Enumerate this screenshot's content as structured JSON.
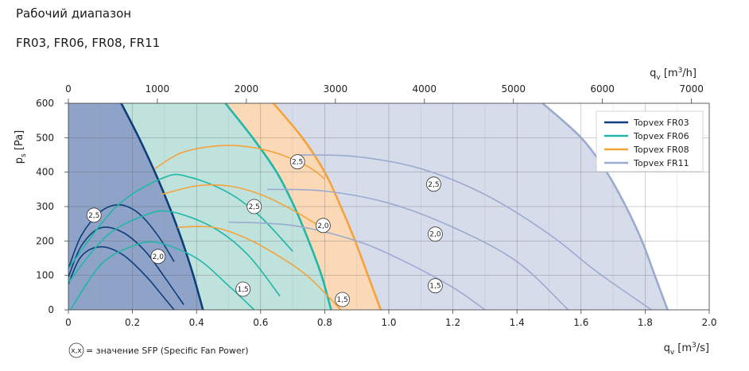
{
  "header": {
    "title": "Рабочий диапазон",
    "subtitle": "FR03, FR06, FR08, FR11"
  },
  "chart_data": {
    "type": "line",
    "ylabel_main": "p",
    "ylabel_sub": "s",
    "ylabel_unit": " [Pa]",
    "xlabel_main": "q",
    "xlabel_sub": "v",
    "xlabel_unit_pre": " [m",
    "xlabel_unit_sup": "3",
    "xlabel_unit_post": "/s]",
    "x2label_main": "q",
    "x2label_sub": "v",
    "x2label_unit_pre": " [m",
    "x2label_unit_sup": "3",
    "x2label_unit_post": "/h]",
    "xlim": [
      0,
      2.0
    ],
    "ylim": [
      0,
      600
    ],
    "x2lim": [
      0,
      7200
    ],
    "x_ticks": [
      0,
      0.2,
      0.4,
      0.6,
      0.8,
      1.0,
      1.2,
      1.4,
      1.6,
      1.8,
      2.0
    ],
    "x_tick_labels": [
      "0",
      "0.2",
      "0.4",
      "0.6",
      "0.8",
      "1.0",
      "1.2",
      "1.4",
      "1.6",
      "1.8",
      "2.0"
    ],
    "y_ticks": [
      0,
      100,
      200,
      300,
      400,
      500,
      600
    ],
    "y_tick_labels": [
      "0",
      "100",
      "200",
      "300",
      "400",
      "500",
      "600"
    ],
    "x2_ticks": [
      0,
      1000,
      2000,
      3000,
      4000,
      5000,
      6000,
      7000
    ],
    "x2_tick_labels": [
      "0",
      "1000",
      "2000",
      "3000",
      "4000",
      "5000",
      "6000",
      "7000"
    ],
    "grid": true,
    "legend_position": "top-right",
    "series": [
      {
        "name": "Topvex FR03",
        "color": "#0d3f7a",
        "fill": "#8fa3c8",
        "boundary": [
          [
            0.165,
            600
          ],
          [
            0.22,
            500
          ],
          [
            0.27,
            400
          ],
          [
            0.315,
            300
          ],
          [
            0.355,
            200
          ],
          [
            0.39,
            100
          ],
          [
            0.42,
            0
          ]
        ],
        "sfp_curves": [
          {
            "label": "2,5",
            "label_xy": [
              0.08,
              275
            ],
            "points": [
              [
                0,
                120
              ],
              [
                0.04,
                215
              ],
              [
                0.1,
                285
              ],
              [
                0.16,
                305
              ],
              [
                0.22,
                280
              ],
              [
                0.28,
                215
              ],
              [
                0.33,
                140
              ]
            ]
          },
          {
            "label": "2,0",
            "label_xy": [
              0.0,
              0
            ],
            "points": [
              [
                0,
                95
              ],
              [
                0.04,
                185
              ],
              [
                0.1,
                238
              ],
              [
                0.17,
                225
              ],
              [
                0.24,
                170
              ],
              [
                0.3,
                95
              ],
              [
                0.36,
                15
              ]
            ]
          },
          {
            "label": "1,5",
            "label_xy": [
              0.0,
              0
            ],
            "points": [
              [
                0,
                75
              ],
              [
                0.04,
                155
              ],
              [
                0.1,
                183
              ],
              [
                0.17,
                160
              ],
              [
                0.24,
                100
              ],
              [
                0.29,
                45
              ],
              [
                0.33,
                0
              ]
            ]
          }
        ]
      },
      {
        "name": "Topvex FR06",
        "color": "#20b7a8",
        "fill": "#bfe2dd",
        "boundary": [
          [
            0.49,
            600
          ],
          [
            0.575,
            500
          ],
          [
            0.65,
            400
          ],
          [
            0.705,
            300
          ],
          [
            0.75,
            200
          ],
          [
            0.79,
            100
          ],
          [
            0.82,
            0
          ]
        ],
        "sfp_curves": [
          {
            "label": "2,5",
            "label_xy": [
              0.58,
              300
            ],
            "points": [
              [
                0,
                120
              ],
              [
                0.15,
                300
              ],
              [
                0.3,
                385
              ],
              [
                0.38,
                385
              ],
              [
                0.5,
                340
              ],
              [
                0.6,
                270
              ],
              [
                0.7,
                170
              ]
            ]
          },
          {
            "label": "2,0",
            "label_xy": [
              0.28,
              155
            ],
            "points": [
              [
                0,
                80
              ],
              [
                0.12,
                215
              ],
              [
                0.24,
                275
              ],
              [
                0.32,
                285
              ],
              [
                0.45,
                240
              ],
              [
                0.56,
                160
              ],
              [
                0.66,
                40
              ]
            ]
          },
          {
            "label": "1,5",
            "label_xy": [
              0.545,
              60
            ],
            "points": [
              [
                0,
                -10
              ],
              [
                0.1,
                130
              ],
              [
                0.2,
                185
              ],
              [
                0.28,
                195
              ],
              [
                0.4,
                150
              ],
              [
                0.5,
                70
              ],
              [
                0.58,
                0
              ]
            ]
          }
        ]
      },
      {
        "name": "Topvex FR08",
        "color": "#f5a23a",
        "fill": "#fbd9b6",
        "boundary": [
          [
            0.64,
            600
          ],
          [
            0.73,
            500
          ],
          [
            0.8,
            400
          ],
          [
            0.85,
            300
          ],
          [
            0.895,
            200
          ],
          [
            0.935,
            100
          ],
          [
            0.975,
            0
          ]
        ],
        "sfp_curves": [
          {
            "label": "2,5",
            "label_xy": [
              0.715,
              430
            ],
            "points": [
              [
                0.27,
                410
              ],
              [
                0.35,
                455
              ],
              [
                0.45,
                475
              ],
              [
                0.55,
                475
              ],
              [
                0.65,
                455
              ],
              [
                0.75,
                415
              ],
              [
                0.8,
                380
              ]
            ]
          },
          {
            "label": "2,0",
            "label_xy": [
              0.795,
              245
            ],
            "points": [
              [
                0.29,
                335
              ],
              [
                0.4,
                360
              ],
              [
                0.5,
                360
              ],
              [
                0.6,
                335
              ],
              [
                0.7,
                290
              ],
              [
                0.78,
                245
              ]
            ]
          },
          {
            "label": "1,5",
            "label_xy": [
              0.855,
              30
            ],
            "points": [
              [
                0.34,
                240
              ],
              [
                0.45,
                240
              ],
              [
                0.55,
                210
              ],
              [
                0.65,
                160
              ],
              [
                0.75,
                95
              ],
              [
                0.85,
                0
              ]
            ]
          }
        ]
      },
      {
        "name": "Topvex FR11",
        "color": "#9aabcf",
        "fill": "#d7dcea",
        "boundary": [
          [
            1.48,
            600
          ],
          [
            1.6,
            500
          ],
          [
            1.68,
            400
          ],
          [
            1.74,
            300
          ],
          [
            1.79,
            200
          ],
          [
            1.83,
            100
          ],
          [
            1.87,
            0
          ]
        ],
        "sfp_curves": [
          {
            "label": "2,5",
            "label_xy": [
              1.14,
              365
            ],
            "points": [
              [
                0.72,
                450
              ],
              [
                0.9,
                445
              ],
              [
                1.1,
                410
              ],
              [
                1.3,
                335
              ],
              [
                1.5,
                220
              ],
              [
                1.65,
                110
              ],
              [
                1.82,
                0
              ]
            ]
          },
          {
            "label": "2,0",
            "label_xy": [
              1.145,
              220
            ],
            "points": [
              [
                0.62,
                350
              ],
              [
                0.8,
                345
              ],
              [
                1.0,
                310
              ],
              [
                1.2,
                240
              ],
              [
                1.4,
                140
              ],
              [
                1.56,
                0
              ]
            ]
          },
          {
            "label": "1,5",
            "label_xy": [
              1.145,
              70
            ],
            "points": [
              [
                0.5,
                255
              ],
              [
                0.7,
                245
              ],
              [
                0.9,
                200
              ],
              [
                1.05,
                140
              ],
              [
                1.2,
                65
              ],
              [
                1.3,
                0
              ]
            ]
          }
        ]
      }
    ],
    "note_symbol": "x,x",
    "note": "= значение SFP (Specific Fan Power)"
  }
}
